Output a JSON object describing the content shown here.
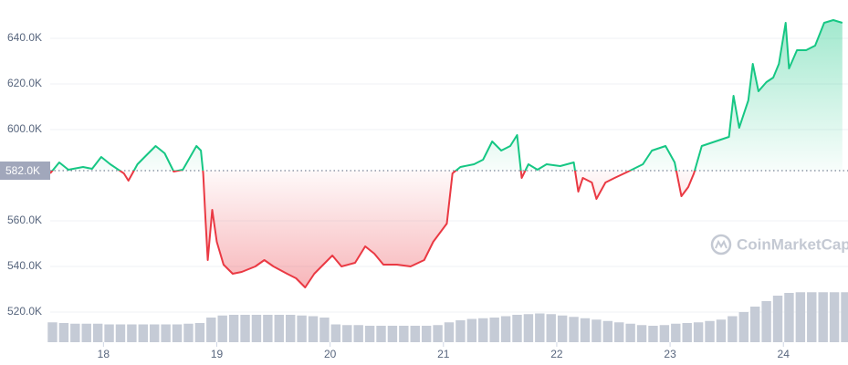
{
  "chart_data": {
    "type": "line",
    "x": [
      17.53,
      17.61,
      17.69,
      17.82,
      17.9,
      17.98,
      18.06,
      18.18,
      18.22,
      18.3,
      18.38,
      18.46,
      18.54,
      18.62,
      18.7,
      18.82,
      18.86,
      18.88,
      18.9,
      18.92,
      18.96,
      19.0,
      19.06,
      19.14,
      19.22,
      19.34,
      19.42,
      19.5,
      19.62,
      19.7,
      19.78,
      19.86,
      19.94,
      20.02,
      20.1,
      20.22,
      20.31,
      20.39,
      20.47,
      20.59,
      20.71,
      20.83,
      20.91,
      21.03,
      21.08,
      21.15,
      21.27,
      21.35,
      21.43,
      21.51,
      21.59,
      21.65,
      21.69,
      21.75,
      21.83,
      21.91,
      22.03,
      22.15,
      22.19,
      22.23,
      22.31,
      22.35,
      22.43,
      22.51,
      22.63,
      22.76,
      22.84,
      22.96,
      23.04,
      23.1,
      23.16,
      23.21,
      23.28,
      23.4,
      23.52,
      23.56,
      23.61,
      23.69,
      23.73,
      23.78,
      23.85,
      23.91,
      23.96,
      24.02,
      24.05,
      24.12,
      24.2,
      24.28,
      24.36,
      24.44,
      24.52
    ],
    "values": [
      580.8,
      585.6,
      582.4,
      583.6,
      582.8,
      588.0,
      584.8,
      580.8,
      577.6,
      584.8,
      588.8,
      592.8,
      589.6,
      581.6,
      582.4,
      592.8,
      590.8,
      580.8,
      560.8,
      542.8,
      564.8,
      550.8,
      540.8,
      536.8,
      537.6,
      540.0,
      542.8,
      540.0,
      536.8,
      534.8,
      530.8,
      536.8,
      540.8,
      544.8,
      540.0,
      541.6,
      548.8,
      545.6,
      540.8,
      540.8,
      540.0,
      542.8,
      550.8,
      558.8,
      580.8,
      583.6,
      584.8,
      586.8,
      594.8,
      590.8,
      592.8,
      597.6,
      578.8,
      584.8,
      582.4,
      584.8,
      584.0,
      585.6,
      572.8,
      578.8,
      576.8,
      569.6,
      576.8,
      578.8,
      581.6,
      584.8,
      590.8,
      592.8,
      585.6,
      570.8,
      574.8,
      580.8,
      592.8,
      594.8,
      596.8,
      614.8,
      600.8,
      612.8,
      628.8,
      616.8,
      620.8,
      622.8,
      628.8,
      646.8,
      626.8,
      634.8,
      634.8,
      636.8,
      646.8,
      648.0,
      646.8
    ],
    "color_up": "#16c784",
    "color_down": "#ea3943",
    "baseline": {
      "value": 582,
      "label": "582.0K"
    },
    "xlim": [
      17.53,
      24.57
    ],
    "xticks": [
      18,
      19,
      20,
      21,
      22,
      23,
      24
    ],
    "ylim": [
      506.8,
      656.8
    ],
    "yticks": [
      {
        "value": 520,
        "label": "520.0K"
      },
      {
        "value": 540,
        "label": "540.0K"
      },
      {
        "value": 560,
        "label": "560.0K"
      },
      {
        "value": 600,
        "label": "600.0K"
      },
      {
        "value": 620,
        "label": "620.0K"
      },
      {
        "value": 640,
        "label": "640.0K"
      }
    ],
    "grid": true,
    "volume": {
      "color": "#c5cbd6",
      "ylim": [
        0,
        100
      ],
      "x": [
        17.55,
        17.65,
        17.75,
        17.85,
        17.95,
        18.05,
        18.15,
        18.25,
        18.35,
        18.45,
        18.55,
        18.65,
        18.75,
        18.85,
        18.95,
        19.05,
        19.15,
        19.25,
        19.35,
        19.45,
        19.55,
        19.65,
        19.75,
        19.85,
        19.95,
        20.05,
        20.15,
        20.25,
        20.35,
        20.45,
        20.55,
        20.65,
        20.75,
        20.85,
        20.95,
        21.05,
        21.15,
        21.25,
        21.35,
        21.45,
        21.55,
        21.65,
        21.75,
        21.85,
        21.95,
        22.05,
        22.15,
        22.25,
        22.35,
        22.45,
        22.55,
        22.65,
        22.75,
        22.85,
        22.95,
        23.05,
        23.15,
        23.25,
        23.35,
        23.45,
        23.55,
        23.65,
        23.75,
        23.85,
        23.95,
        24.05,
        24.15,
        24.25,
        24.35,
        24.45,
        24.55
      ],
      "values": [
        29,
        28,
        27,
        27,
        27,
        26,
        26,
        26,
        26,
        26,
        26,
        26,
        27,
        28,
        36,
        39,
        40,
        40,
        40,
        40,
        40,
        40,
        39,
        38,
        36,
        26,
        25,
        25,
        24,
        24,
        24,
        24,
        24,
        24,
        25,
        29,
        32,
        34,
        35,
        36,
        38,
        40,
        41,
        42,
        41,
        39,
        37,
        35,
        33,
        31,
        29,
        27,
        25,
        24,
        25,
        27,
        28,
        29,
        31,
        33,
        38,
        44,
        52,
        60,
        68,
        72,
        73,
        73,
        73,
        73,
        73
      ]
    },
    "watermark": "CoinMarketCap"
  }
}
